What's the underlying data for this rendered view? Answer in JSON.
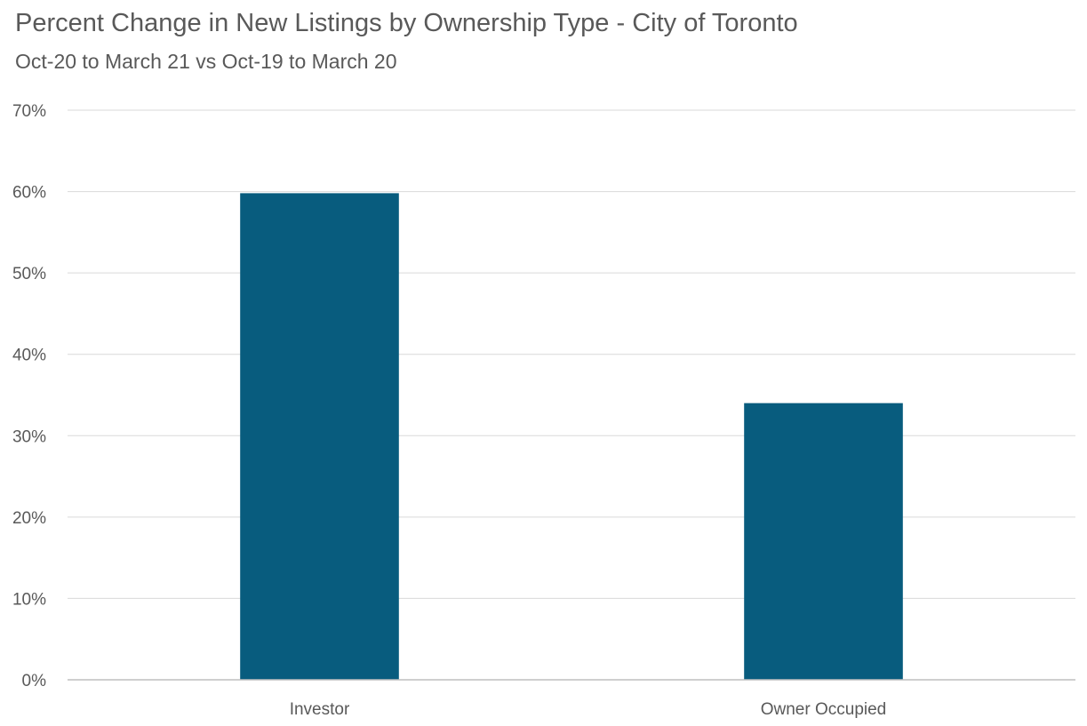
{
  "chart_data": {
    "type": "bar",
    "title": "Percent Change in New Listings by Ownership Type - City of Toronto",
    "subtitle": "Oct-20 to March 21 vs Oct-19 to March 20",
    "categories": [
      "Investor",
      "Owner Occupied"
    ],
    "values": [
      0.598,
      0.34
    ],
    "ylim": [
      0,
      0.7
    ],
    "yticks": [
      0,
      0.1,
      0.2,
      0.3,
      0.4,
      0.5,
      0.6,
      0.7
    ],
    "ytick_labels": [
      "0%",
      "10%",
      "20%",
      "30%",
      "40%",
      "50%",
      "60%",
      "70%"
    ],
    "xlabel": "",
    "ylabel": "",
    "grid": true,
    "legend": "none",
    "bar_color": "#085c7e",
    "grid_color": "#d9d9d9",
    "axis_color": "#bfbfbf",
    "text_color": "#595959"
  }
}
